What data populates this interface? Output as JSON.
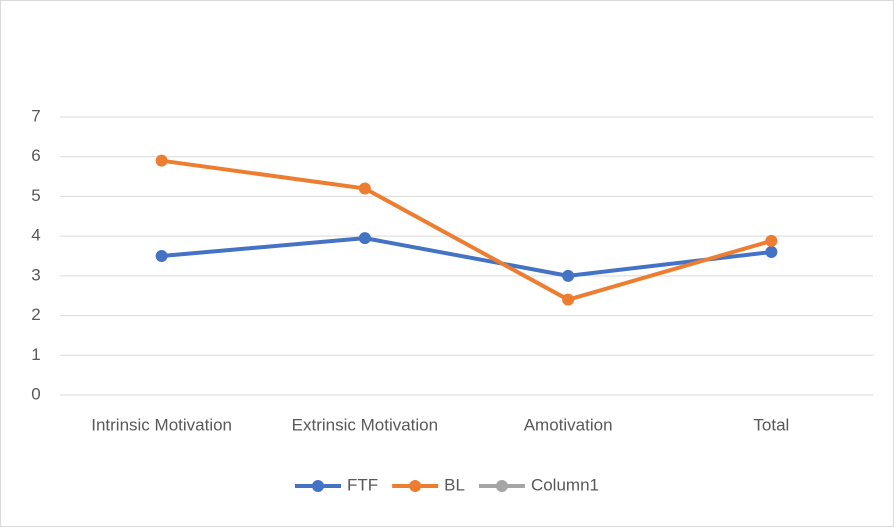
{
  "chart_data": {
    "type": "line",
    "categories": [
      "Intrinsic Motivation",
      "Extrinsic Motivation",
      "Amotivation",
      "Total"
    ],
    "series": [
      {
        "name": "FTF",
        "color": "#4472c4",
        "values": [
          3.5,
          3.95,
          3.0,
          3.6
        ]
      },
      {
        "name": "BL",
        "color": "#ed7d31",
        "values": [
          5.9,
          5.2,
          2.4,
          3.88
        ]
      },
      {
        "name": "Column1",
        "color": "#a5a5a5",
        "values": [
          null,
          null,
          null,
          null
        ]
      }
    ],
    "ylim": [
      0,
      7
    ],
    "yticks": [
      0,
      1,
      2,
      3,
      4,
      5,
      6,
      7
    ],
    "grid": true,
    "legend": "bottom"
  }
}
